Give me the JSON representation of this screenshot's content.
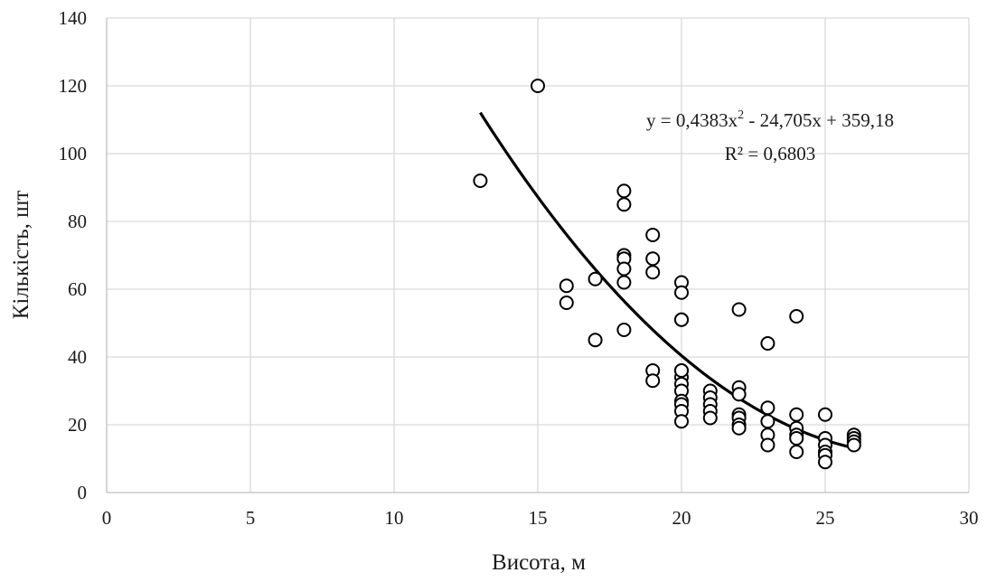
{
  "chart_data": {
    "type": "scatter",
    "xlabel": "Висота, м",
    "ylabel": "Кількість, шт",
    "xlim": [
      0,
      30
    ],
    "ylim": [
      0,
      140
    ],
    "x_ticks": [
      0,
      5,
      10,
      15,
      20,
      25,
      30
    ],
    "y_ticks": [
      0,
      20,
      40,
      60,
      80,
      100,
      120,
      140
    ],
    "x_tick_labels": [
      "0",
      "5",
      "10",
      "15",
      "20",
      "25",
      "30"
    ],
    "y_tick_labels": [
      "0",
      "20",
      "40",
      "60",
      "80",
      "100",
      "120",
      "140"
    ],
    "grid": true,
    "legend": "none",
    "series": [
      {
        "x": [
          13,
          15,
          16,
          16,
          17,
          17,
          18,
          18,
          18,
          18,
          18,
          18,
          18,
          19,
          19,
          19,
          19,
          19,
          20,
          20,
          20,
          20,
          20,
          20,
          20,
          20,
          20,
          20,
          20,
          20,
          20,
          21,
          21,
          21,
          21,
          21,
          22,
          22,
          22,
          22,
          22,
          22,
          22,
          23,
          23,
          23,
          23,
          23,
          24,
          24,
          24,
          24,
          24,
          24,
          25,
          25,
          25,
          25,
          25,
          25,
          26,
          26,
          26,
          26
        ],
        "y": [
          92,
          120,
          61,
          56,
          63,
          45,
          89,
          85,
          70,
          69,
          66,
          62,
          48,
          76,
          69,
          65,
          36,
          33,
          62,
          59,
          51,
          51,
          36,
          34,
          32,
          30,
          27,
          26,
          24,
          21,
          36,
          30,
          28,
          26,
          24,
          22,
          54,
          31,
          29,
          23,
          22,
          20,
          19,
          44,
          25,
          21,
          17,
          14,
          52,
          23,
          19,
          17,
          16,
          12,
          23,
          16,
          14,
          12,
          11,
          9,
          17,
          16,
          15,
          14
        ]
      }
    ],
    "trendline": {
      "type": "polynomial",
      "coefficients": [
        0.4383,
        -24.705,
        359.18
      ],
      "x_range": [
        13,
        26
      ]
    },
    "annotations": {
      "equation_prefix": "y = 0,4383x",
      "equation_power": "2",
      "equation_suffix": " - 24,705x + 359,18",
      "r_squared": "R² = 0,6803"
    }
  }
}
